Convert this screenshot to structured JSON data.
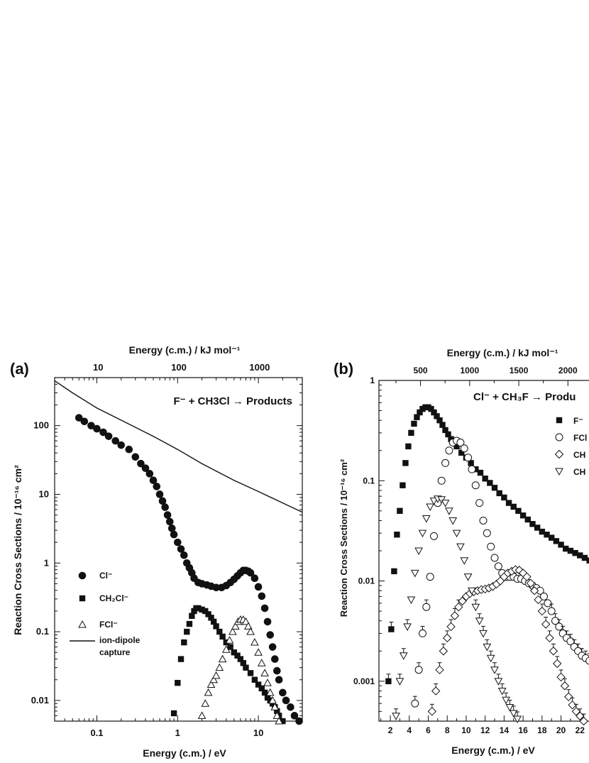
{
  "chart_data": [
    {
      "panel": "(a)",
      "type": "scatter",
      "title": "F⁻ + CH3Cl → Products",
      "xlabel": "Energy (c.m.) / eV",
      "x2label": "Energy (c.m.) / kJ mol⁻¹",
      "ylabel": "Reaction Cross Sections / 10⁻¹⁶ cm²",
      "xscale": "log",
      "yscale": "log",
      "xlim": [
        0.03,
        35
      ],
      "ylim": [
        0.005,
        500
      ],
      "xticks": [
        "0.1",
        "1",
        "10"
      ],
      "x2ticks": [
        "10",
        "100",
        "1000"
      ],
      "yticks": [
        "0.01",
        "0.1",
        "1",
        "10",
        "100"
      ],
      "legend_position": "left",
      "series": [
        {
          "name": "Cl⁻",
          "marker": "filled-circle",
          "x": [
            0.06,
            0.07,
            0.085,
            0.1,
            0.12,
            0.14,
            0.17,
            0.2,
            0.25,
            0.3,
            0.35,
            0.4,
            0.45,
            0.5,
            0.55,
            0.6,
            0.65,
            0.7,
            0.75,
            0.8,
            0.85,
            0.9,
            1.0,
            1.1,
            1.2,
            1.3,
            1.4,
            1.5,
            1.6,
            1.8,
            2.0,
            2.3,
            2.6,
            3.0,
            3.5,
            4.0,
            4.5,
            5.0,
            5.5,
            6.0,
            6.5,
            7.0,
            7.5,
            8.0,
            9.0,
            10,
            11,
            12,
            13,
            14,
            15,
            16,
            17,
            18,
            20,
            22,
            25,
            28,
            32
          ],
          "y": [
            130,
            115,
            100,
            90,
            80,
            70,
            60,
            52,
            45,
            35,
            28,
            24,
            20,
            16,
            13,
            10,
            8,
            6.5,
            5,
            4,
            3.2,
            2.6,
            2.0,
            1.6,
            1.3,
            1.0,
            0.85,
            0.72,
            0.6,
            0.52,
            0.5,
            0.48,
            0.46,
            0.44,
            0.44,
            0.47,
            0.52,
            0.58,
            0.65,
            0.72,
            0.78,
            0.78,
            0.76,
            0.72,
            0.6,
            0.45,
            0.33,
            0.22,
            0.14,
            0.09,
            0.06,
            0.04,
            0.027,
            0.02,
            0.013,
            0.01,
            0.008,
            0.006,
            0.005
          ]
        },
        {
          "name": "CH2Cl⁻",
          "marker": "filled-square",
          "x": [
            0.9,
            1.0,
            1.1,
            1.2,
            1.3,
            1.4,
            1.5,
            1.6,
            1.7,
            1.8,
            2.0,
            2.2,
            2.4,
            2.6,
            2.8,
            3.0,
            3.3,
            3.6,
            4.0,
            4.5,
            5.0,
            5.5,
            6.0,
            6.5,
            7.0,
            8.0,
            9.0,
            10,
            11,
            12,
            13,
            14,
            15,
            16,
            17,
            18,
            20
          ],
          "y": [
            0.0065,
            0.018,
            0.04,
            0.07,
            0.1,
            0.13,
            0.17,
            0.2,
            0.22,
            0.22,
            0.21,
            0.2,
            0.18,
            0.16,
            0.14,
            0.12,
            0.1,
            0.085,
            0.07,
            0.06,
            0.05,
            0.045,
            0.04,
            0.035,
            0.03,
            0.025,
            0.02,
            0.017,
            0.015,
            0.013,
            0.011,
            0.01,
            0.009,
            0.008,
            0.007,
            0.006,
            0.005
          ]
        },
        {
          "name": "FCl⁻",
          "marker": "open-triangle",
          "x": [
            2.0,
            2.2,
            2.4,
            2.6,
            2.8,
            3.0,
            3.3,
            3.6,
            4.0,
            4.4,
            4.8,
            5.2,
            5.6,
            6.0,
            6.5,
            7.0,
            7.5,
            8.0,
            9.0,
            10,
            11,
            12,
            13,
            14,
            15,
            16,
            17,
            18
          ],
          "y": [
            0.006,
            0.009,
            0.013,
            0.017,
            0.02,
            0.023,
            0.03,
            0.04,
            0.055,
            0.075,
            0.1,
            0.12,
            0.14,
            0.15,
            0.15,
            0.14,
            0.12,
            0.1,
            0.07,
            0.05,
            0.035,
            0.025,
            0.018,
            0.013,
            0.01,
            0.008,
            0.006,
            0.005
          ]
        },
        {
          "name": "ion-dipole capture",
          "marker": "line",
          "x": [
            0.03,
            0.05,
            0.1,
            0.2,
            0.5,
            1,
            2,
            5,
            10,
            20,
            35
          ],
          "y": [
            450,
            300,
            180,
            120,
            70,
            45,
            28,
            16,
            11,
            7.5,
            5.5
          ]
        }
      ],
      "legend": [
        {
          "label": "Cl⁻",
          "marker": "filled-circle"
        },
        {
          "label": "CH₂Cl⁻",
          "marker": "filled-square"
        },
        {
          "label": "FCl⁻",
          "marker": "open-triangle"
        },
        {
          "label": "ion-dipole",
          "marker": "line",
          "label2": "capture"
        }
      ]
    },
    {
      "panel": "(b)",
      "type": "scatter",
      "title": "Cl⁻ + CH₃F → Produ",
      "xlabel": "Energy (c.m.) / eV",
      "x2label": "Energy (c.m.) / kJ mol⁻¹",
      "ylabel": "Reaction Cross Sections / 10⁻¹⁶ cm²",
      "xscale": "linear",
      "yscale": "log",
      "xlim": [
        0.8,
        24
      ],
      "ylim": [
        0.0004,
        1
      ],
      "xticks": [
        "2",
        "4",
        "6",
        "8",
        "10",
        "12",
        "14",
        "16",
        "18",
        "20",
        "22"
      ],
      "x2ticks": [
        "500",
        "1000",
        "1500",
        "2000"
      ],
      "yticks": [
        "0.001",
        "0.01",
        "0.1",
        "1"
      ],
      "legend_position": "right",
      "series": [
        {
          "name": "F⁻",
          "marker": "filled-square",
          "x": [
            1.8,
            2.1,
            2.4,
            2.7,
            3.0,
            3.3,
            3.6,
            3.9,
            4.2,
            4.5,
            4.8,
            5.1,
            5.4,
            5.7,
            6.0,
            6.3,
            6.6,
            6.9,
            7.2,
            7.5,
            7.8,
            8.1,
            8.4,
            8.7,
            9.0,
            9.5,
            10,
            10.5,
            11,
            11.5,
            12,
            12.5,
            13,
            13.5,
            14,
            14.5,
            15,
            15.5,
            16,
            16.5,
            17,
            17.5,
            18,
            18.5,
            19,
            19.5,
            20,
            20.5,
            21,
            21.5,
            22,
            22.5,
            23,
            23.5
          ],
          "y": [
            0.001,
            0.0033,
            0.0125,
            0.029,
            0.05,
            0.09,
            0.15,
            0.22,
            0.3,
            0.37,
            0.43,
            0.48,
            0.52,
            0.54,
            0.54,
            0.52,
            0.48,
            0.44,
            0.4,
            0.36,
            0.32,
            0.29,
            0.26,
            0.24,
            0.22,
            0.19,
            0.17,
            0.15,
            0.13,
            0.12,
            0.105,
            0.095,
            0.085,
            0.075,
            0.068,
            0.06,
            0.055,
            0.05,
            0.045,
            0.041,
            0.037,
            0.034,
            0.031,
            0.029,
            0.027,
            0.025,
            0.023,
            0.021,
            0.02,
            0.019,
            0.018,
            0.017,
            0.016,
            0.015
          ]
        },
        {
          "name": "FCl⁻",
          "marker": "open-circle",
          "x": [
            4.6,
            5.0,
            5.4,
            5.8,
            6.2,
            6.6,
            7.0,
            7.4,
            7.8,
            8.2,
            8.6,
            9.0,
            9.4,
            9.8,
            10.2,
            10.6,
            11.0,
            11.4,
            11.8,
            12.2,
            12.6,
            13.0,
            13.4,
            13.8,
            14.2,
            14.6,
            15.0,
            15.4,
            15.8,
            16.2,
            16.6,
            17.0,
            17.4,
            17.8,
            18.2,
            18.6,
            19.0,
            19.4,
            19.8,
            20.2,
            20.6,
            21.0,
            21.4,
            21.8,
            22.2,
            22.6,
            23.0,
            23.4,
            23.8
          ],
          "y": [
            0.0006,
            0.0013,
            0.003,
            0.0055,
            0.011,
            0.028,
            0.06,
            0.1,
            0.15,
            0.2,
            0.24,
            0.25,
            0.24,
            0.21,
            0.17,
            0.13,
            0.09,
            0.06,
            0.04,
            0.03,
            0.022,
            0.017,
            0.014,
            0.012,
            0.011,
            0.011,
            0.011,
            0.0105,
            0.0105,
            0.01,
            0.0095,
            0.009,
            0.0085,
            0.008,
            0.007,
            0.006,
            0.005,
            0.004,
            0.0035,
            0.003,
            0.0027,
            0.0025,
            0.0022,
            0.002,
            0.0018,
            0.0017,
            0.0016,
            0.0015,
            0.0014
          ]
        },
        {
          "name": "CH",
          "marker": "open-diamond",
          "x": [
            6.4,
            6.8,
            7.2,
            7.6,
            8.0,
            8.4,
            8.8,
            9.2,
            9.6,
            10.0,
            10.4,
            10.8,
            11.2,
            11.6,
            12.0,
            12.4,
            12.8,
            13.2,
            13.6,
            14.0,
            14.4,
            14.8,
            15.2,
            15.6,
            16.0,
            16.4,
            16.8,
            17.2,
            17.6,
            18.0,
            18.4,
            18.8,
            19.2,
            19.6,
            20.0,
            20.4,
            20.8,
            21.2,
            21.6,
            22.0,
            22.4
          ],
          "y": [
            0.0005,
            0.0008,
            0.0013,
            0.002,
            0.0027,
            0.0035,
            0.0045,
            0.0055,
            0.0063,
            0.007,
            0.0075,
            0.0078,
            0.008,
            0.0082,
            0.0083,
            0.0085,
            0.0088,
            0.0093,
            0.01,
            0.011,
            0.012,
            0.0125,
            0.013,
            0.0128,
            0.012,
            0.011,
            0.0095,
            0.008,
            0.0065,
            0.005,
            0.0037,
            0.0027,
            0.002,
            0.0015,
            0.0011,
            0.0009,
            0.0007,
            0.00058,
            0.0005,
            0.00045,
            0.0004
          ]
        },
        {
          "name": "CH",
          "marker": "open-triangle-down",
          "x": [
            2.6,
            3.0,
            3.4,
            3.8,
            4.2,
            4.6,
            5.0,
            5.4,
            5.8,
            6.2,
            6.6,
            7.0,
            7.4,
            7.8,
            8.2,
            8.6,
            9.0,
            9.4,
            9.8,
            10.2,
            10.6,
            11.0,
            11.4,
            11.8,
            12.2,
            12.6,
            13.0,
            13.4,
            13.8,
            14.2,
            14.6,
            15.0,
            15.4
          ],
          "y": [
            0.00045,
            0.001,
            0.0018,
            0.0035,
            0.0065,
            0.012,
            0.02,
            0.03,
            0.042,
            0.055,
            0.063,
            0.066,
            0.065,
            0.06,
            0.05,
            0.04,
            0.03,
            0.022,
            0.016,
            0.011,
            0.008,
            0.0055,
            0.004,
            0.003,
            0.0022,
            0.0017,
            0.0013,
            0.001,
            0.0008,
            0.00065,
            0.00055,
            0.00048,
            0.00042
          ]
        }
      ],
      "legend": [
        {
          "label": "F⁻",
          "marker": "filled-square"
        },
        {
          "label": "FCl",
          "marker": "open-circle"
        },
        {
          "label": "CH",
          "marker": "open-diamond"
        },
        {
          "label": "CH",
          "marker": "open-triangle-down"
        }
      ]
    }
  ]
}
